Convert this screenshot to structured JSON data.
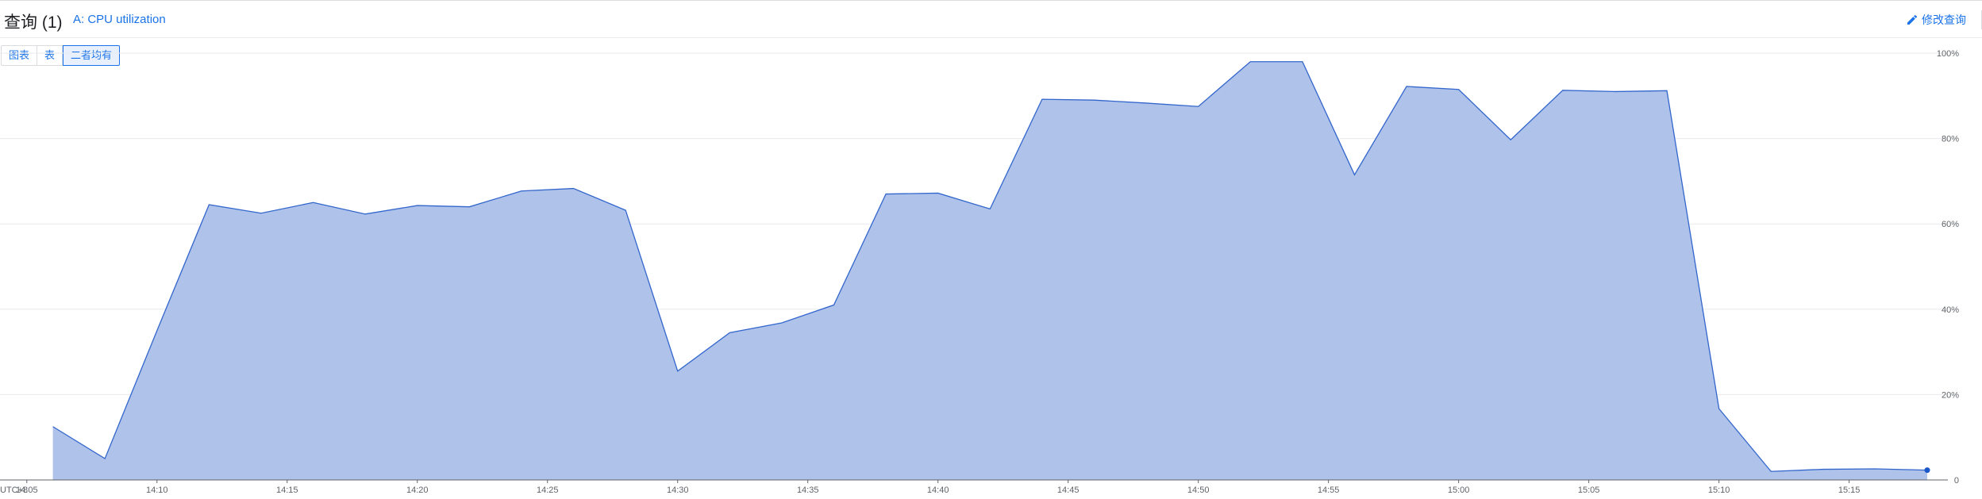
{
  "header": {
    "title": "查询 (1)",
    "query_label": "A: CPU utilization",
    "edit_label": "修改查询",
    "edit_icon": "pencil-icon"
  },
  "view_toggle": {
    "options": [
      "图表",
      "表",
      "二者均有"
    ],
    "selected": "二者均有"
  },
  "colors": {
    "accent": "#1a73e8",
    "area_fill": "#aec2ea",
    "area_stroke": "#3366cc"
  },
  "chart_data": {
    "type": "area",
    "title": "",
    "xlabel": "",
    "ylabel": "",
    "timezone_label": "UTC+8",
    "x_ticks": [
      "14:05",
      "14:10",
      "14:15",
      "14:20",
      "14:25",
      "14:30",
      "14:35",
      "14:40",
      "14:45",
      "14:50",
      "14:55",
      "15:00",
      "15:05",
      "15:10",
      "15:15"
    ],
    "y_ticks": [
      "0",
      "20%",
      "40%",
      "60%",
      "80%",
      "100%"
    ],
    "ylim": [
      0,
      100
    ],
    "xlim": [
      "14:04",
      "15:18"
    ],
    "grid": true,
    "series": [
      {
        "x": [
          "14:06",
          "14:08",
          "14:10",
          "14:12",
          "14:14",
          "14:16",
          "14:18",
          "14:20",
          "14:22",
          "14:24",
          "14:26",
          "14:28",
          "14:30",
          "14:32",
          "14:34",
          "14:36",
          "14:38",
          "14:40",
          "14:42",
          "14:44",
          "14:46",
          "14:48",
          "14:50",
          "14:52",
          "14:54",
          "14:56",
          "14:58",
          "15:00",
          "15:02",
          "15:04",
          "15:06",
          "15:08",
          "15:10",
          "15:12",
          "15:14",
          "15:16",
          "15:18"
        ],
        "values": [
          12.5,
          5,
          35,
          64.5,
          62.5,
          65,
          62.3,
          64.3,
          64,
          67.7,
          68.3,
          63.2,
          25.5,
          34.5,
          36.8,
          41,
          67,
          67.2,
          63.5,
          89.2,
          89,
          88.3,
          87.5,
          98,
          98,
          71.5,
          92.2,
          91.5,
          79.7,
          91.3,
          91,
          91.2,
          16.7,
          2,
          2.5,
          2.6,
          2.3
        ]
      }
    ]
  }
}
